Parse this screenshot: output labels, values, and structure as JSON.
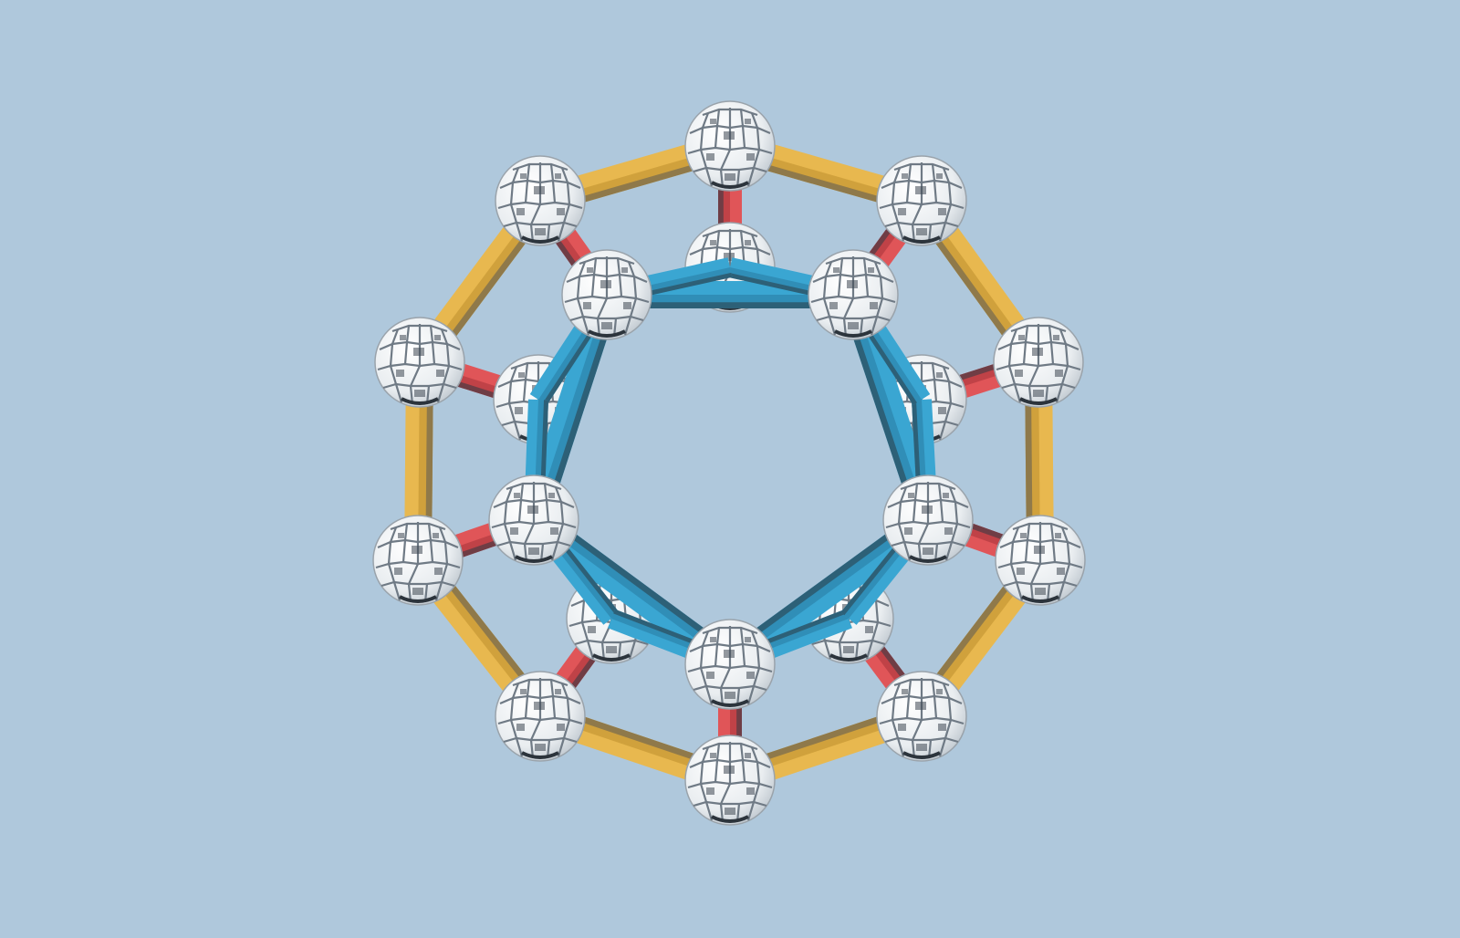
{
  "scene": {
    "background": "#afc8dc",
    "colors": {
      "outer_strut": "#e8b84f",
      "outer_strut_shade": "#c89a35",
      "outer_strut_dark": "#5a5a55",
      "inner_strut": "#3aa6d2",
      "inner_strut_shade": "#2e86ad",
      "inner_strut_dark": "#2c3a44",
      "radial_strut": "#e05558",
      "radial_strut_shade": "#b53c41",
      "node_fill": "#f4f6f8",
      "node_line": "#7b8590",
      "node_dark": "#3d4650"
    },
    "icons": {
      "node": "ball-connector-icon",
      "strut": "zome-strut-icon"
    }
  }
}
